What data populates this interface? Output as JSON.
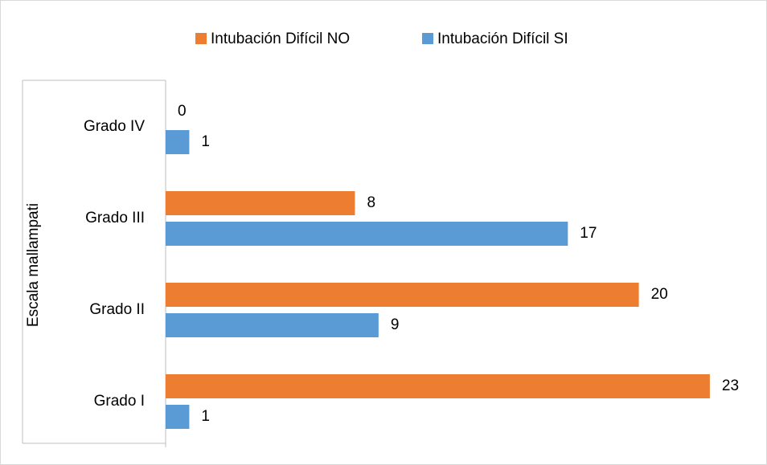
{
  "chart_data": {
    "type": "barh",
    "y_label": "Escala mallampati",
    "categories": [
      "Grado I",
      "Grado II",
      "Grado III",
      "Grado IV"
    ],
    "series": [
      {
        "name": "Intubación Difícil NO",
        "color": "#ED7D31",
        "values": [
          23,
          20,
          8,
          0
        ]
      },
      {
        "name": "Intubación Difícil SI",
        "color": "#5B9BD5",
        "values": [
          1,
          9,
          17,
          1
        ]
      }
    ],
    "legend": "top"
  }
}
